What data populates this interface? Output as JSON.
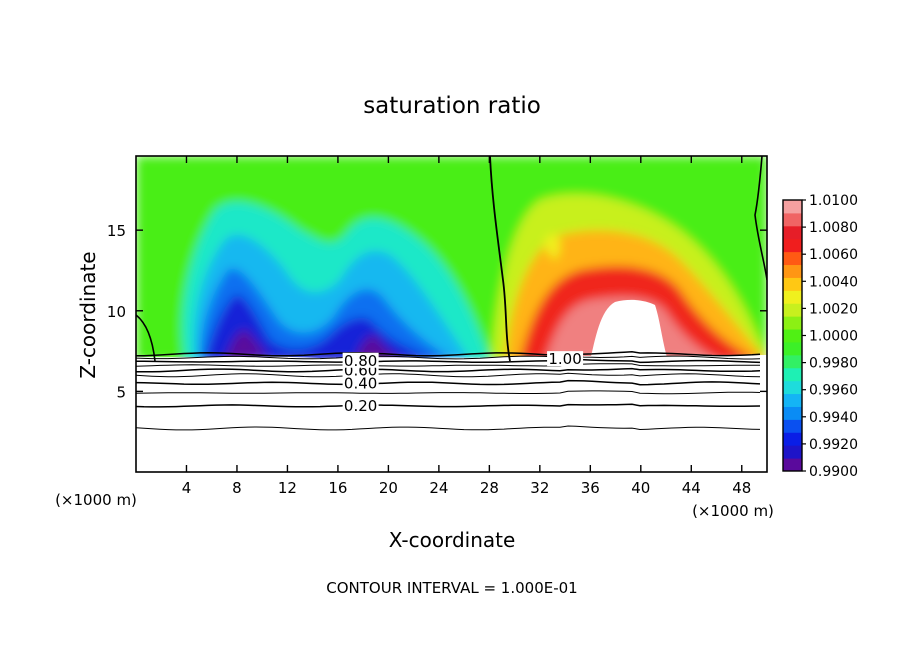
{
  "chart_data": {
    "type": "heatmap",
    "title": "saturation ratio",
    "xlabel": "X-coordinate",
    "ylabel": "Z-coordinate",
    "x_unit_label": "(×1000 m)",
    "y_unit_label": "(×1000 m)",
    "xlim": [
      0,
      50
    ],
    "ylim": [
      0,
      19.6
    ],
    "x_ticks": [
      4,
      8,
      12,
      16,
      20,
      24,
      28,
      32,
      36,
      40,
      44,
      48
    ],
    "y_ticks": [
      5,
      10,
      15
    ],
    "footer": "CONTOUR INTERVAL = 1.000E-01",
    "colorbar": {
      "levels": [
        0.99,
        0.991,
        0.992,
        0.993,
        0.994,
        0.995,
        0.996,
        0.997,
        0.998,
        0.999,
        1.0,
        1.001,
        1.002,
        1.003,
        1.004,
        1.005,
        1.006,
        1.007,
        1.008,
        1.009,
        1.01
      ],
      "labels": [
        "0.9900",
        "0.9920",
        "0.9940",
        "0.9960",
        "0.9980",
        "1.0000",
        "1.0020",
        "1.0040",
        "1.0060",
        "1.0080",
        "1.0100"
      ],
      "colors": [
        "#5a0a9c",
        "#1e14c8",
        "#0a1ee6",
        "#0a50f0",
        "#0a8cf5",
        "#14b4f5",
        "#1edcdc",
        "#1ef0b4",
        "#32f064",
        "#3cf028",
        "#50f014",
        "#8cf014",
        "#c8f01e",
        "#f0f01e",
        "#ffc814",
        "#ff9614",
        "#ff5a14",
        "#f01e1e",
        "#e61e28",
        "#f06464",
        "#f5a0a0"
      ]
    },
    "contour_labels": [
      {
        "text": "0.20",
        "x": 17.8,
        "z": 4.1
      },
      {
        "text": "0.40",
        "x": 17.8,
        "z": 5.5
      },
      {
        "text": "0.60",
        "x": 17.8,
        "z": 6.3
      },
      {
        "text": "0.80",
        "x": 17.8,
        "z": 6.9
      },
      {
        "text": "1.00",
        "x": 34.0,
        "z": 7.0
      }
    ],
    "contour_levels": [
      0.1,
      0.2,
      0.3,
      0.4,
      0.5,
      0.6,
      0.7,
      0.8,
      0.9,
      1.0
    ],
    "contour_heights_z": [
      2.7,
      4.1,
      4.9,
      5.5,
      6.0,
      6.3,
      6.6,
      6.85,
      7.1,
      7.3
    ],
    "features": {
      "dry_blobs": [
        {
          "x": 8.5,
          "z": 10.5,
          "value": 0.9905
        },
        {
          "x": 19.0,
          "z": 11.0,
          "value": 0.9905
        },
        {
          "x": 26.0,
          "z": 8.5,
          "value": 0.9935
        }
      ],
      "moist_blob": {
        "x": 39.0,
        "z": 11.5,
        "value": 1.0085
      },
      "unity_contour_x_range": [
        28.5,
        30.0
      ]
    }
  }
}
